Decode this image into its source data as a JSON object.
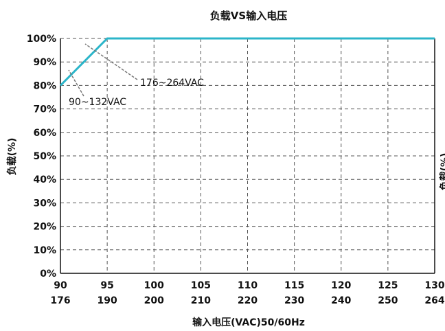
{
  "chart_data": {
    "type": "line",
    "title": "负载VS输入电压",
    "xlabel": "输入电压(VAC)50/60Hz",
    "ylabel": "负载(%)",
    "right_ylabel_partial": "负载(%)",
    "x_ticks_row1": [
      "90",
      "95",
      "100",
      "105",
      "110",
      "115",
      "120",
      "125",
      "130"
    ],
    "x_ticks_row2": [
      "176",
      "190",
      "200",
      "210",
      "220",
      "230",
      "240",
      "250",
      "264"
    ],
    "y_ticks": [
      "0%",
      "10%",
      "20%",
      "30%",
      "40%",
      "50%",
      "60%",
      "70%",
      "80%",
      "90%",
      "100%"
    ],
    "xlim": [
      90,
      130
    ],
    "ylim": [
      0,
      100
    ],
    "grid": true,
    "series": [
      {
        "points": [
          [
            90,
            80
          ],
          [
            95,
            100
          ],
          [
            130,
            100
          ]
        ],
        "color": "#2bb5c9"
      }
    ],
    "annotations": [
      {
        "text": "176~264VAC"
      },
      {
        "text": "90~132VAC"
      }
    ]
  }
}
